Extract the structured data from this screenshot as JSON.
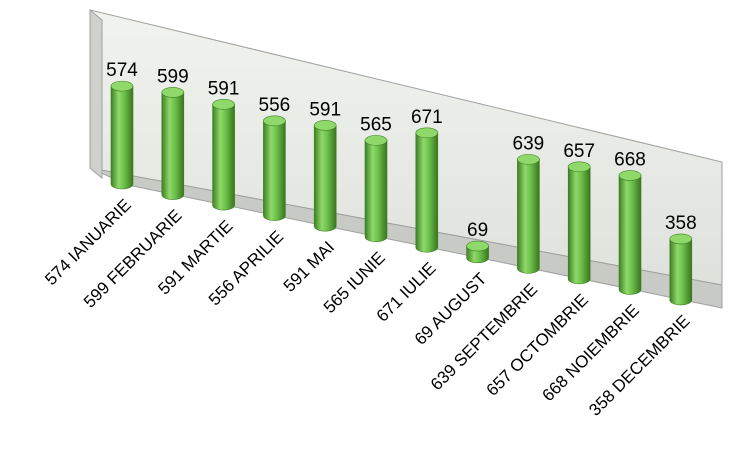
{
  "chart_data": {
    "type": "bar",
    "style": "3d-cylinder",
    "categories": [
      "574 IANUARIE",
      "599 FEBRUARIE",
      "591 MARTIE",
      "556 APRILIE",
      "591 MAI",
      "565 IUNIE",
      "671 IULIE",
      "69 AUGUST",
      "639 SEPTEMBRIE",
      "657 OCTOMBRIE",
      "668 NOIEMBRIE",
      "358 DECEMBRIE"
    ],
    "values": [
      574,
      599,
      591,
      556,
      591,
      565,
      671,
      69,
      639,
      657,
      668,
      358
    ],
    "data_labels": [
      "574",
      "599",
      "591",
      "556",
      "591",
      "565",
      "671",
      "69",
      "639",
      "657",
      "668",
      "358"
    ],
    "title": "",
    "xlabel": "",
    "ylabel": "",
    "ylim": [
      0,
      700
    ],
    "grid": false,
    "legend": "none",
    "colors": {
      "bar": "#6cc04a",
      "bar_dark": "#3f7f23",
      "bar_top": "#8fd96a",
      "wall": "#e9ece6",
      "floor": "#c8cac6",
      "wall_edge": "#a0a0a0"
    }
  }
}
